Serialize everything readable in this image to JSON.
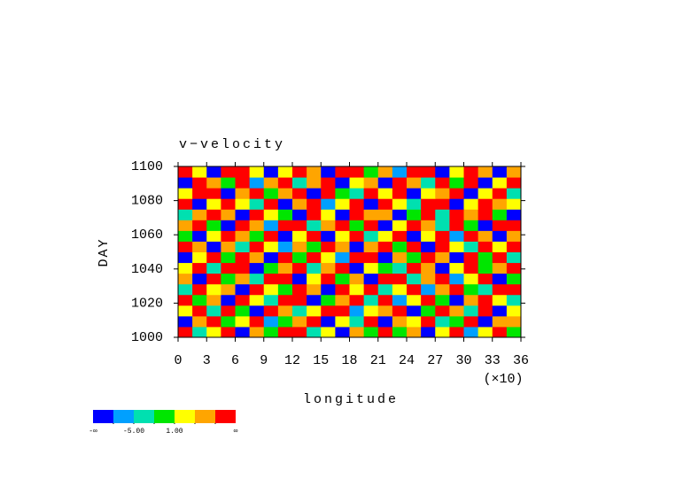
{
  "chart_data": {
    "type": "heatmap",
    "title": "v−velocity",
    "x_label": "longitude",
    "x_multiplier": "(×10)",
    "y_label": "DAY",
    "xlim": [
      0,
      36
    ],
    "xticks": [
      0,
      3,
      6,
      9,
      12,
      15,
      18,
      21,
      24,
      27,
      30,
      33,
      36
    ],
    "ylim": [
      1000,
      1100
    ],
    "yticks": [
      1000,
      1020,
      1040,
      1060,
      1080,
      1100
    ],
    "colorbar": {
      "colors": [
        "#0000ff",
        "#00a0ff",
        "#00e0b0",
        "#00e600",
        "#ffff00",
        "#ffa500",
        "#ff0000"
      ],
      "levels": [
        {
          "value": -8,
          "label": null
        },
        {
          "value": -5,
          "label": "-5.00"
        },
        {
          "value": -2,
          "label": null
        },
        {
          "value": 1,
          "label": "1.00"
        },
        {
          "value": 4,
          "label": null
        },
        {
          "value": 7,
          "label": null
        }
      ],
      "min_label": "-∞",
      "max_label": "∞"
    },
    "z": [
      [
        9,
        -3,
        2,
        10,
        -9,
        4,
        -1,
        8,
        11,
        -4,
        3,
        -10,
        6,
        0,
        9,
        -2,
        5,
        -9,
        2,
        10,
        -6,
        3,
        8,
        -1
      ],
      [
        -9,
        5,
        10,
        -2,
        3,
        9,
        -6,
        0,
        4,
        10,
        -9,
        2,
        -3,
        8,
        -10,
        5,
        1,
        9,
        -4,
        0,
        10,
        -9,
        4,
        6
      ],
      [
        3,
        10,
        -4,
        8,
        0,
        -9,
        9,
        5,
        -3,
        2,
        8,
        10,
        -7,
        3,
        4,
        9,
        -9,
        0,
        10,
        5,
        -3,
        8,
        -9,
        2
      ],
      [
        10,
        -1,
        6,
        -9,
        9,
        2,
        -4,
        10,
        7,
        -9,
        0,
        5,
        9,
        -3,
        10,
        -6,
        3,
        8,
        -1,
        -9,
        6,
        10,
        2,
        -4
      ],
      [
        -4,
        8,
        2,
        5,
        -10,
        9,
        3,
        -2,
        10,
        6,
        -9,
        9,
        1,
        10,
        -4,
        2,
        9,
        -8,
        5,
        10,
        0,
        -3,
        9,
        7
      ],
      [
        6,
        -9,
        10,
        0,
        4,
        -3,
        9,
        7,
        -9,
        1,
        10,
        -2,
        5,
        -9,
        8,
        10,
        -3,
        4,
        9,
        -6,
        3,
        9,
        -10,
        0
      ],
      [
        2,
        9,
        -5,
        10,
        8,
        -9,
        0,
        4,
        9,
        -4,
        6,
        10,
        -9,
        2,
        0,
        -4,
        10,
        6,
        -9,
        3,
        10,
        -2,
        5,
        9
      ],
      [
        -9,
        3,
        8,
        -1,
        10,
        5,
        -9,
        9,
        -2,
        10,
        3,
        -6,
        8,
        9,
        -9,
        5,
        -1,
        10,
        4,
        -9,
        8,
        0,
        10,
        -3
      ],
      [
        10,
        6,
        -9,
        4,
        -3,
        10,
        2,
        -8,
        6,
        0,
        9,
        4,
        -10,
        5,
        10,
        -2,
        7,
        -9,
        9,
        2,
        -4,
        10,
        3,
        8
      ],
      [
        0,
        -9,
        3,
        9,
        6,
        -2,
        10,
        -9,
        3,
        8,
        -9,
        1,
        9,
        -4,
        3,
        9,
        -9,
        2,
        10,
        -6,
        9,
        4,
        -9,
        5
      ],
      [
        5,
        10,
        -2,
        -9,
        9,
        4,
        -6,
        10,
        9,
        -3,
        5,
        10,
        0,
        8,
        -9,
        3,
        10,
        5,
        -3,
        9,
        0,
        -9,
        8,
        10
      ],
      [
        -3,
        4,
        9,
        6,
        -9,
        10,
        3,
        0,
        -9,
        9,
        2,
        -9,
        10,
        4,
        6,
        -9,
        0,
        9,
        -5,
        10,
        4,
        7,
        -2,
        -9
      ],
      [
        9,
        -9,
        1,
        10,
        2,
        -4,
        8,
        -9,
        5,
        10,
        -6,
        3,
        7,
        -9,
        10,
        2,
        -4,
        9,
        8,
        -9,
        3,
        10,
        6,
        1
      ],
      [
        2,
        7,
        10,
        -9,
        5,
        9,
        -2,
        4,
        10,
        -9,
        8,
        0,
        -4,
        10,
        3,
        9,
        -9,
        1,
        6,
        10,
        -9,
        3,
        9,
        -4
      ],
      [
        -9,
        10,
        4,
        0,
        9,
        -8,
        6,
        10,
        -3,
        5,
        9,
        -9,
        3,
        6,
        -9,
        10,
        4,
        -3,
        10,
        0,
        7,
        -9,
        2,
        10
      ],
      [
        8,
        3,
        -9,
        9,
        10,
        1,
        -9,
        2,
        9,
        4,
        -10,
        8,
        10,
        -2,
        5,
        -6,
        9,
        10,
        -9,
        3,
        10,
        5,
        -9,
        4
      ]
    ]
  }
}
